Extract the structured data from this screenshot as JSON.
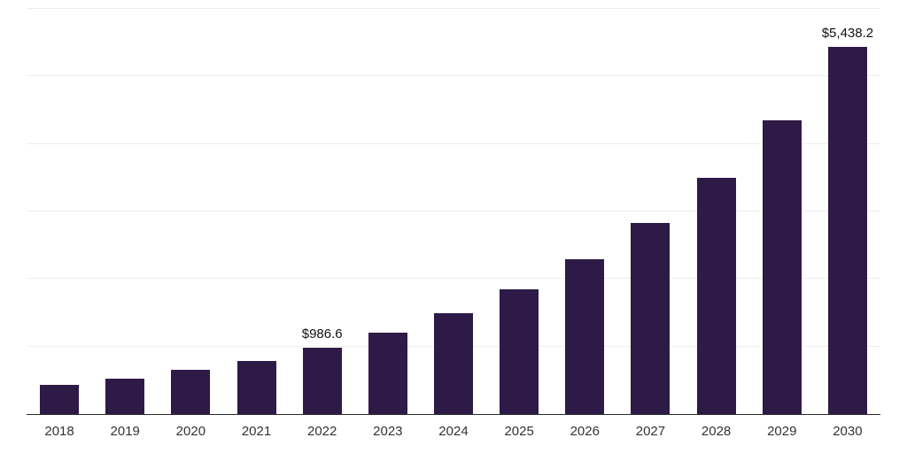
{
  "chart_data": {
    "type": "bar",
    "title": "",
    "xlabel": "",
    "ylabel": "",
    "categories": [
      "2018",
      "2019",
      "2020",
      "2021",
      "2022",
      "2023",
      "2024",
      "2025",
      "2026",
      "2027",
      "2028",
      "2029",
      "2030"
    ],
    "values": [
      430,
      530,
      650,
      790,
      986.6,
      1210,
      1500,
      1850,
      2290,
      2830,
      3500,
      4350,
      5438.2
    ],
    "labeled_points": [
      {
        "category": "2022",
        "label": "$986.6"
      },
      {
        "category": "2030",
        "label": "$5,438.2"
      }
    ],
    "ylim": [
      0,
      6000
    ],
    "grid": "horizontal",
    "grid_interval": 1000,
    "legend": "none",
    "bar_color": "#2e1a47",
    "gridline_color": "#ededed",
    "axis_line_color": "#2b2b2b",
    "tick_label_color": "#333333",
    "value_label_color": "#111111"
  }
}
